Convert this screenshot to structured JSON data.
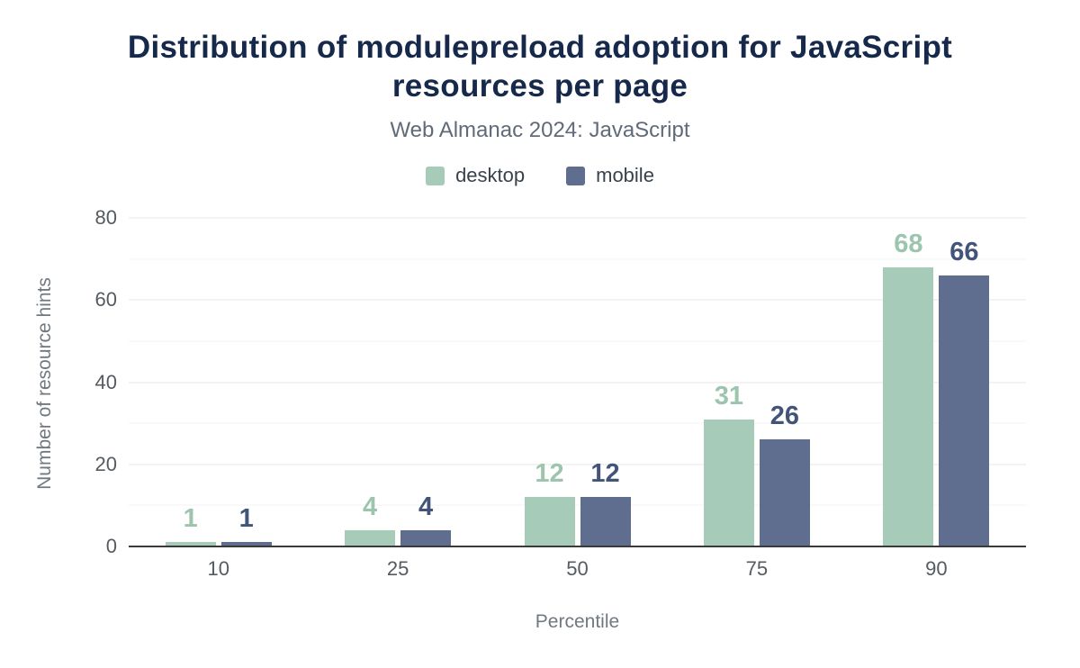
{
  "chart_data": {
    "type": "bar",
    "title": "Distribution of modulepreload adoption for JavaScript resources per page",
    "subtitle": "Web Almanac 2024: JavaScript",
    "categories": [
      "10",
      "25",
      "50",
      "75",
      "90"
    ],
    "series": [
      {
        "name": "desktop",
        "color": "#a6cbb8",
        "label_color": "#9dc5ad",
        "values": [
          1,
          4,
          12,
          31,
          68
        ]
      },
      {
        "name": "mobile",
        "color": "#5f6e8e",
        "label_color": "#42547a",
        "values": [
          1,
          4,
          12,
          26,
          66
        ]
      }
    ],
    "xlabel": "Percentile",
    "ylabel": "Number of resource hints",
    "ylim": [
      0,
      80
    ],
    "yticks": [
      0,
      20,
      40,
      60,
      80
    ],
    "yticks_minor": [
      10,
      30,
      50,
      70
    ],
    "grid": true,
    "legend_position": "top"
  }
}
